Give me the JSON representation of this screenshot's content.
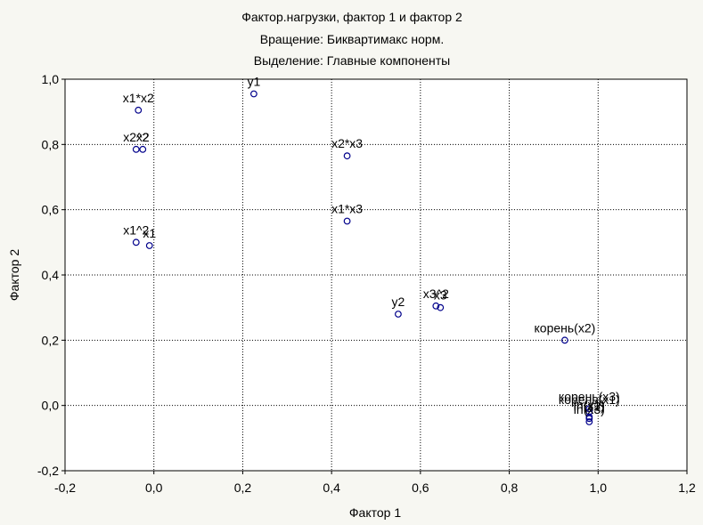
{
  "chart_data": {
    "type": "scatter",
    "title": [
      "Фактор.нагрузки, фактор 1 и фактор   2",
      "Вращение: Биквартимакс норм.",
      "Выделение: Главные компоненты"
    ],
    "xlabel": "Фактор 1",
    "ylabel": "Фактор 2",
    "xlim": [
      -0.2,
      1.2
    ],
    "ylim": [
      -0.2,
      1.0
    ],
    "x_ticks": [
      -0.2,
      0.0,
      0.2,
      0.4,
      0.6,
      0.8,
      1.0,
      1.2
    ],
    "y_ticks": [
      -0.2,
      0.0,
      0.2,
      0.4,
      0.6,
      0.8,
      1.0
    ],
    "x_tick_labels": [
      "-0,2",
      "0,0",
      "0,2",
      "0,4",
      "0,6",
      "0,8",
      "1,0",
      "1,2"
    ],
    "y_tick_labels": [
      "-0,2",
      "0,0",
      "0,2",
      "0,4",
      "0,6",
      "0,8",
      "1,0"
    ],
    "grid": true,
    "marker_color": "#00008b",
    "points": [
      {
        "label": "x1*x2",
        "x": -0.035,
        "y": 0.905
      },
      {
        "label": "y1",
        "x": 0.225,
        "y": 0.955
      },
      {
        "label": "x2^2",
        "x": -0.04,
        "y": 0.785
      },
      {
        "label": "x2",
        "x": -0.025,
        "y": 0.785
      },
      {
        "label": "x2*x3",
        "x": 0.435,
        "y": 0.765
      },
      {
        "label": "x1*x3",
        "x": 0.435,
        "y": 0.565
      },
      {
        "label": "x1^2",
        "x": -0.04,
        "y": 0.5
      },
      {
        "label": "x1",
        "x": -0.01,
        "y": 0.49
      },
      {
        "label": "y2",
        "x": 0.55,
        "y": 0.28
      },
      {
        "label": "x3^2",
        "x": 0.635,
        "y": 0.305
      },
      {
        "label": "x3",
        "x": 0.645,
        "y": 0.3
      },
      {
        "label": "корень(x2)",
        "x": 0.925,
        "y": 0.2
      },
      {
        "label": "корень(x3)",
        "x": 0.98,
        "y": -0.01
      },
      {
        "label": "корень(x1)",
        "x": 0.98,
        "y": -0.02
      },
      {
        "label": "ln(x1)",
        "x": 0.98,
        "y": -0.035
      },
      {
        "label": "ln(x2)",
        "x": 0.98,
        "y": -0.04
      },
      {
        "label": "ln(x3)",
        "x": 0.98,
        "y": -0.05
      }
    ]
  }
}
